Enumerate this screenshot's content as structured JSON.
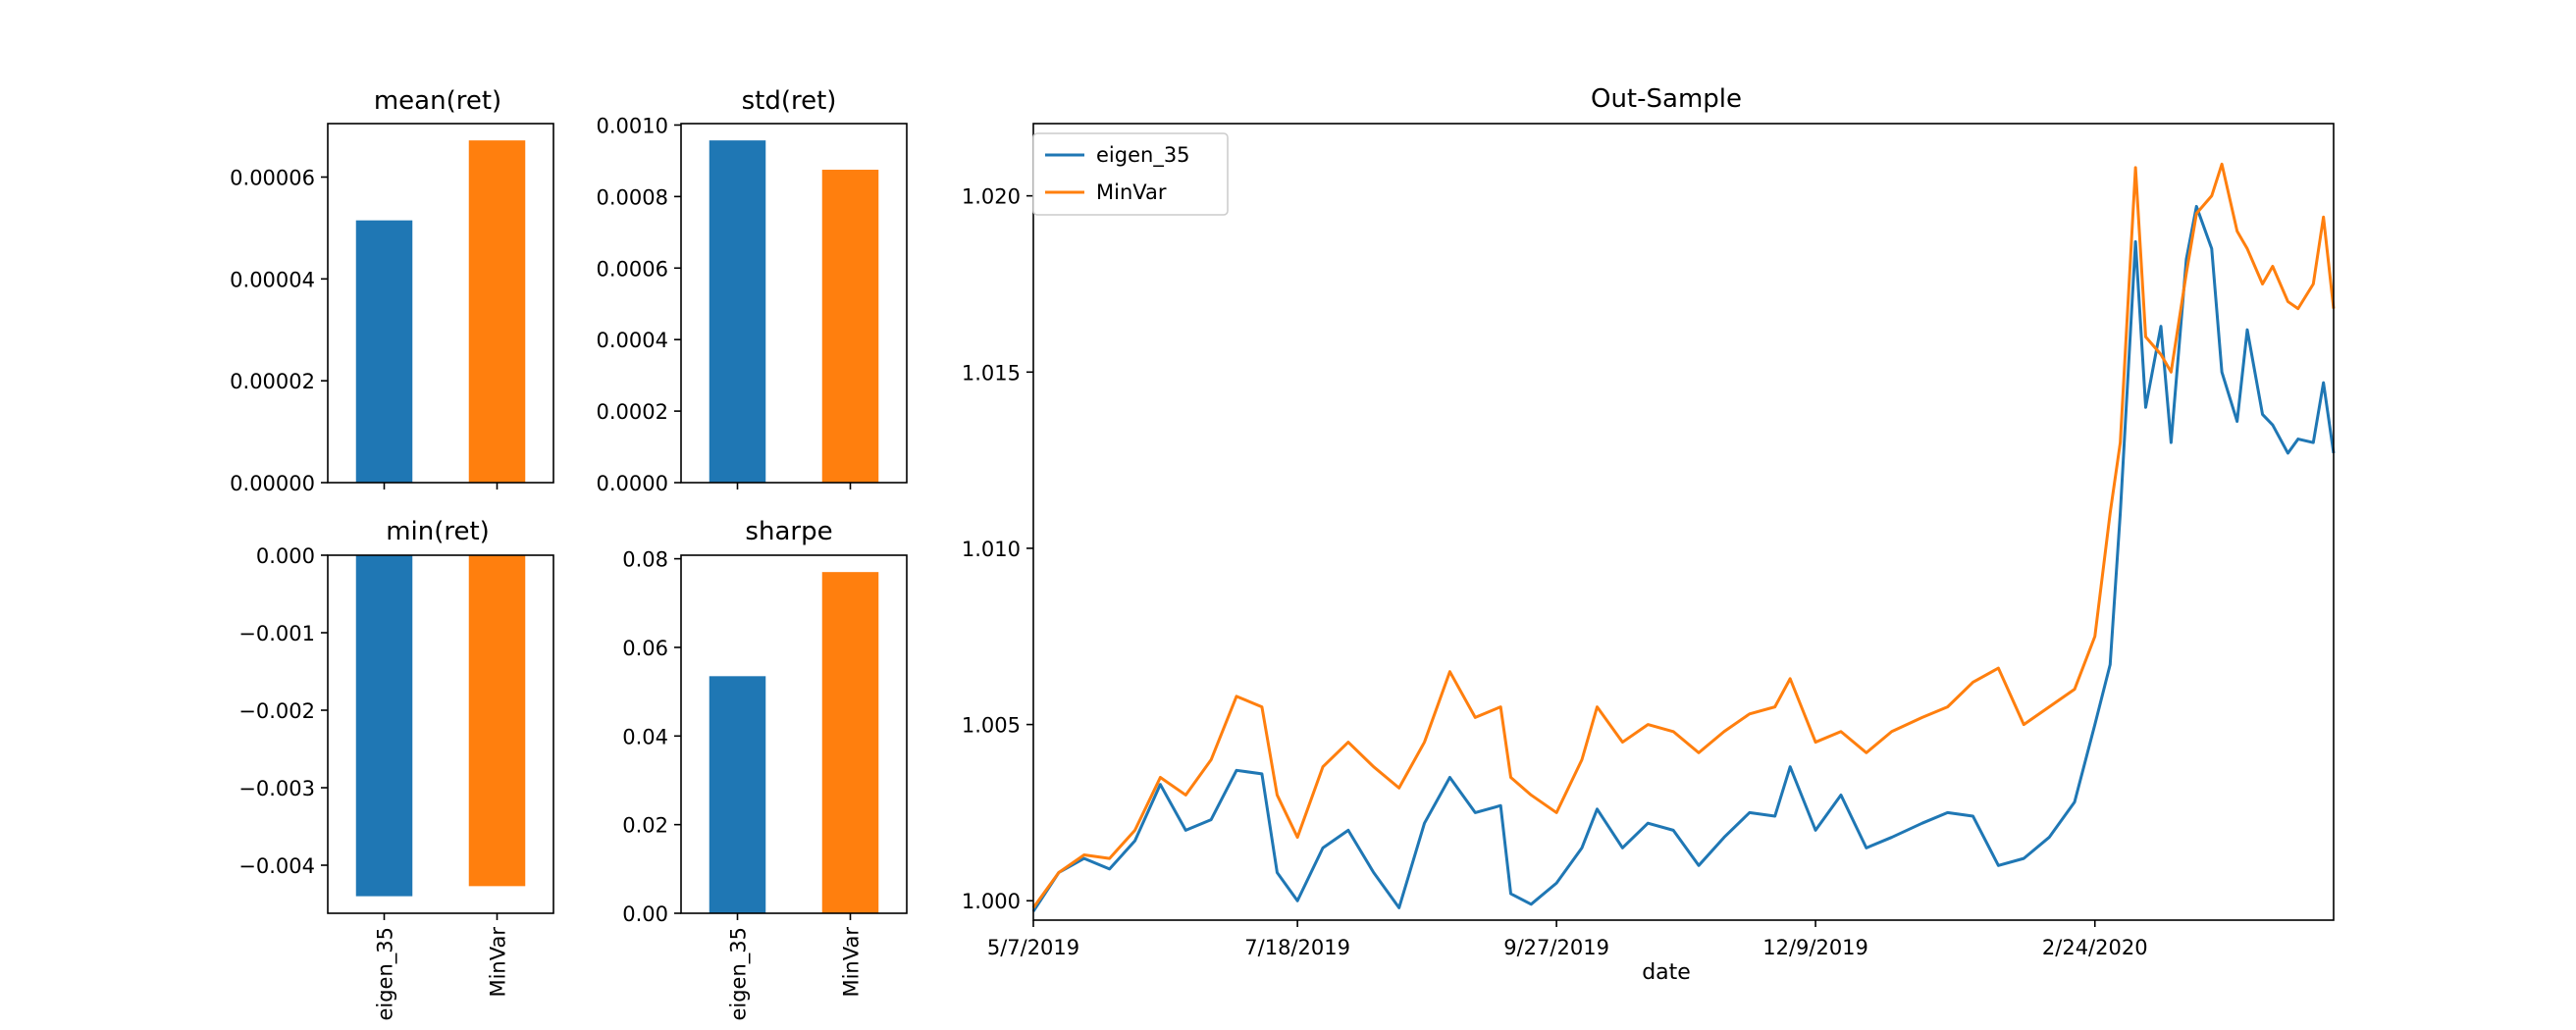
{
  "colors": {
    "blue": "#1f77b4",
    "orange": "#ff7f0e"
  },
  "chart_data": [
    {
      "id": "mean",
      "type": "bar",
      "title": "mean(ret)",
      "categories": [
        "eigen_35",
        "MinVar"
      ],
      "values": [
        5.15e-05,
        6.72e-05
      ],
      "ylim": [
        0,
        7.05e-05
      ],
      "yticks": [
        0,
        2e-05,
        4e-05,
        6e-05
      ],
      "ytick_labels": [
        "0.00000",
        "0.00002",
        "0.00004",
        "0.00006"
      ],
      "grid": false
    },
    {
      "id": "std",
      "type": "bar",
      "title": "std(ret)",
      "categories": [
        "eigen_35",
        "MinVar"
      ],
      "values": [
        0.000957,
        0.000875
      ],
      "ylim": [
        0,
        0.001004
      ],
      "yticks": [
        0,
        0.0002,
        0.0004,
        0.0006,
        0.0008,
        0.001
      ],
      "ytick_labels": [
        "0.0000",
        "0.0002",
        "0.0004",
        "0.0006",
        "0.0008",
        "0.0010"
      ],
      "grid": false
    },
    {
      "id": "min",
      "type": "bar",
      "title": "min(ret)",
      "categories": [
        "eigen_35",
        "MinVar"
      ],
      "tick_labels": [
        "eigen_35",
        "MinVar"
      ],
      "values": [
        -0.0044,
        -0.00427
      ],
      "ylim": [
        -0.00462,
        0
      ],
      "yticks": [
        0,
        -0.001,
        -0.002,
        -0.003,
        -0.004
      ],
      "ytick_labels": [
        "0.000",
        "−0.001",
        "−0.002",
        "−0.003",
        "−0.004"
      ],
      "grid": false
    },
    {
      "id": "sharpe",
      "type": "bar",
      "title": "sharpe",
      "categories": [
        "eigen_35",
        "MinVar"
      ],
      "tick_labels": [
        "eigen_35",
        "MinVar"
      ],
      "values": [
        0.0535,
        0.077
      ],
      "ylim": [
        0,
        0.0808
      ],
      "yticks": [
        0,
        0.02,
        0.04,
        0.06,
        0.08
      ],
      "ytick_labels": [
        "0.00",
        "0.02",
        "0.04",
        "0.06",
        "0.08"
      ],
      "grid": false
    },
    {
      "id": "outsample",
      "type": "line",
      "title": "Out-Sample",
      "xlabel": "date",
      "ylabel": "",
      "x_start": "5/7/2019",
      "x_tick_labels": [
        "5/7/2019",
        "7/18/2019",
        "9/27/2019",
        "12/9/2019",
        "2/24/2020"
      ],
      "ylim": [
        0.99945,
        1.02205
      ],
      "yticks": [
        1.0,
        1.005,
        1.01,
        1.015,
        1.02
      ],
      "ytick_labels": [
        "1.000",
        "1.005",
        "1.010",
        "1.015",
        "1.020"
      ],
      "legend": "upper-left",
      "grid": false,
      "series": [
        {
          "name": "eigen_35",
          "color": "#1f77b4",
          "points": [
            [
              "5/7/2019",
              0.9997
            ],
            [
              "5/14/2019",
              1.0008
            ],
            [
              "5/21/2019",
              1.0012
            ],
            [
              "5/28/2019",
              1.0009
            ],
            [
              "6/4/2019",
              1.0017
            ],
            [
              "6/11/2019",
              1.0033
            ],
            [
              "6/18/2019",
              1.002
            ],
            [
              "6/25/2019",
              1.0023
            ],
            [
              "7/2/2019",
              1.0037
            ],
            [
              "7/9/2019",
              1.0036
            ],
            [
              "7/12/2019",
              1.0008
            ],
            [
              "7/18/2019",
              1.0
            ],
            [
              "7/25/2019",
              1.0015
            ],
            [
              "8/1/2019",
              1.002
            ],
            [
              "8/8/2019",
              1.0008
            ],
            [
              "8/15/2019",
              0.9998
            ],
            [
              "8/22/2019",
              1.0022
            ],
            [
              "8/29/2019",
              1.0035
            ],
            [
              "9/5/2019",
              1.0025
            ],
            [
              "9/12/2019",
              1.0027
            ],
            [
              "9/16/2019",
              1.0002
            ],
            [
              "9/20/2019",
              0.9999
            ],
            [
              "9/27/2019",
              1.0005
            ],
            [
              "10/4/2019",
              1.0015
            ],
            [
              "10/9/2019",
              1.0026
            ],
            [
              "10/16/2019",
              1.0015
            ],
            [
              "10/23/2019",
              1.0022
            ],
            [
              "10/30/2019",
              1.002
            ],
            [
              "11/6/2019",
              1.001
            ],
            [
              "11/13/2019",
              1.0018
            ],
            [
              "11/20/2019",
              1.0025
            ],
            [
              "11/27/2019",
              1.0024
            ],
            [
              "12/2/2019",
              1.0038
            ],
            [
              "12/9/2019",
              1.002
            ],
            [
              "12/16/2019",
              1.003
            ],
            [
              "12/23/2019",
              1.0015
            ],
            [
              "12/30/2019",
              1.0018
            ],
            [
              "1/7/2020",
              1.0022
            ],
            [
              "1/14/2020",
              1.0025
            ],
            [
              "1/21/2020",
              1.0024
            ],
            [
              "1/28/2020",
              1.001
            ],
            [
              "2/4/2020",
              1.0012
            ],
            [
              "2/11/2020",
              1.0018
            ],
            [
              "2/18/2020",
              1.0028
            ],
            [
              "2/24/2020",
              1.005
            ],
            [
              "2/27/2020",
              1.0067
            ],
            [
              "3/2/2020",
              1.011
            ],
            [
              "3/5/2020",
              1.0187
            ],
            [
              "3/9/2020",
              1.014
            ],
            [
              "3/12/2020",
              1.0163
            ],
            [
              "3/16/2020",
              1.013
            ],
            [
              "3/19/2020",
              1.0182
            ],
            [
              "3/23/2020",
              1.0197
            ],
            [
              "3/26/2020",
              1.0185
            ],
            [
              "3/30/2020",
              1.015
            ],
            [
              "4/2/2020",
              1.0136
            ],
            [
              "4/6/2020",
              1.0162
            ],
            [
              "4/9/2020",
              1.0138
            ],
            [
              "4/13/2020",
              1.0135
            ],
            [
              "4/16/2020",
              1.0127
            ],
            [
              "4/20/2020",
              1.0131
            ],
            [
              "4/23/2020",
              1.013
            ],
            [
              "4/27/2020",
              1.0147
            ],
            [
              "4/29/2020",
              1.0127
            ]
          ]
        },
        {
          "name": "MinVar",
          "color": "#ff7f0e",
          "points": [
            [
              "5/7/2019",
              0.9998
            ],
            [
              "5/14/2019",
              1.0008
            ],
            [
              "5/21/2019",
              1.0013
            ],
            [
              "5/28/2019",
              1.0012
            ],
            [
              "6/4/2019",
              1.002
            ],
            [
              "6/11/2019",
              1.0035
            ],
            [
              "6/18/2019",
              1.003
            ],
            [
              "6/25/2019",
              1.004
            ],
            [
              "7/2/2019",
              1.0058
            ],
            [
              "7/9/2019",
              1.0055
            ],
            [
              "7/12/2019",
              1.003
            ],
            [
              "7/18/2019",
              1.0018
            ],
            [
              "7/25/2019",
              1.0038
            ],
            [
              "8/1/2019",
              1.0045
            ],
            [
              "8/8/2019",
              1.0038
            ],
            [
              "8/15/2019",
              1.0032
            ],
            [
              "8/22/2019",
              1.0045
            ],
            [
              "8/29/2019",
              1.0065
            ],
            [
              "9/5/2019",
              1.0052
            ],
            [
              "9/12/2019",
              1.0055
            ],
            [
              "9/16/2019",
              1.0035
            ],
            [
              "9/20/2019",
              1.003
            ],
            [
              "9/27/2019",
              1.0025
            ],
            [
              "10/4/2019",
              1.004
            ],
            [
              "10/9/2019",
              1.0055
            ],
            [
              "10/16/2019",
              1.0045
            ],
            [
              "10/23/2019",
              1.005
            ],
            [
              "10/30/2019",
              1.0048
            ],
            [
              "11/6/2019",
              1.0042
            ],
            [
              "11/13/2019",
              1.0048
            ],
            [
              "11/20/2019",
              1.0053
            ],
            [
              "11/27/2019",
              1.0055
            ],
            [
              "12/2/2019",
              1.0063
            ],
            [
              "12/9/2019",
              1.0045
            ],
            [
              "12/16/2019",
              1.0048
            ],
            [
              "12/23/2019",
              1.0042
            ],
            [
              "12/30/2019",
              1.0048
            ],
            [
              "1/7/2020",
              1.0052
            ],
            [
              "1/14/2020",
              1.0055
            ],
            [
              "1/21/2020",
              1.0062
            ],
            [
              "1/28/2020",
              1.0066
            ],
            [
              "2/4/2020",
              1.005
            ],
            [
              "2/11/2020",
              1.0055
            ],
            [
              "2/18/2020",
              1.006
            ],
            [
              "2/24/2020",
              1.0075
            ],
            [
              "2/27/2020",
              1.011
            ],
            [
              "3/2/2020",
              1.013
            ],
            [
              "3/5/2020",
              1.0208
            ],
            [
              "3/9/2020",
              1.016
            ],
            [
              "3/12/2020",
              1.0155
            ],
            [
              "3/16/2020",
              1.015
            ],
            [
              "3/19/2020",
              1.0178
            ],
            [
              "3/23/2020",
              1.0195
            ],
            [
              "3/26/2020",
              1.02
            ],
            [
              "3/30/2020",
              1.0209
            ],
            [
              "4/2/2020",
              1.019
            ],
            [
              "4/6/2020",
              1.0185
            ],
            [
              "4/9/2020",
              1.0175
            ],
            [
              "4/13/2020",
              1.018
            ],
            [
              "4/16/2020",
              1.017
            ],
            [
              "4/20/2020",
              1.0168
            ],
            [
              "4/23/2020",
              1.0175
            ],
            [
              "4/27/2020",
              1.0194
            ],
            [
              "4/29/2020",
              1.0168
            ]
          ]
        }
      ]
    }
  ]
}
